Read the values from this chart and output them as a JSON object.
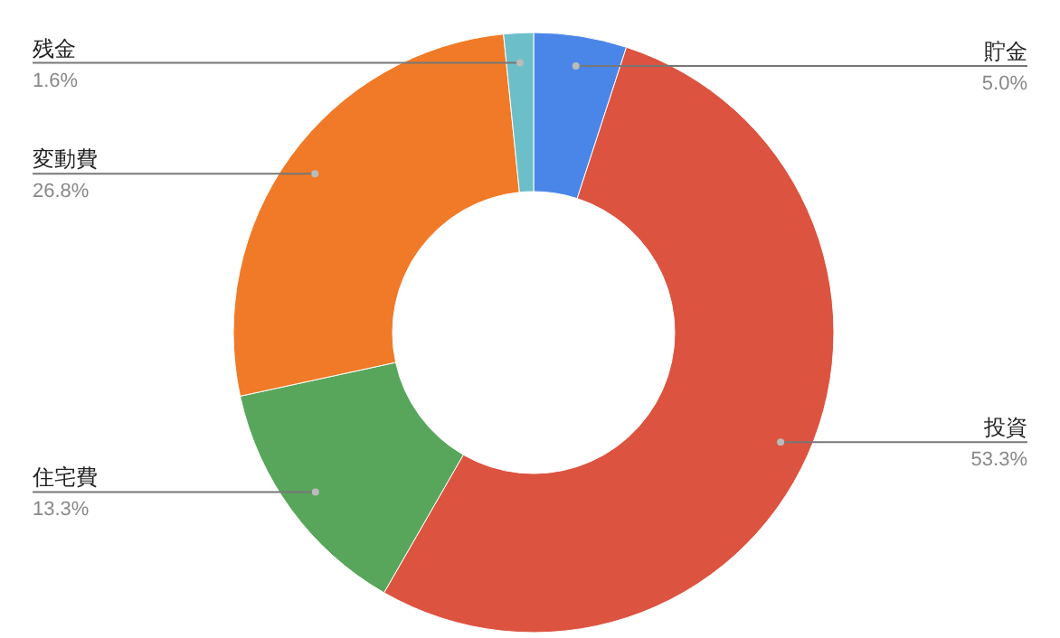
{
  "chart_data": {
    "type": "donut",
    "categories": [
      "貯金",
      "投資",
      "住宅費",
      "変動費",
      "残金"
    ],
    "values": [
      5.0,
      53.3,
      13.3,
      26.8,
      1.6
    ],
    "value_labels": [
      "5.0%",
      "53.3%",
      "13.3%",
      "26.8%",
      "1.6%"
    ],
    "colors": [
      "#4a86e8",
      "#dc5340",
      "#58a65c",
      "#f07a27",
      "#6cbfc9"
    ]
  }
}
